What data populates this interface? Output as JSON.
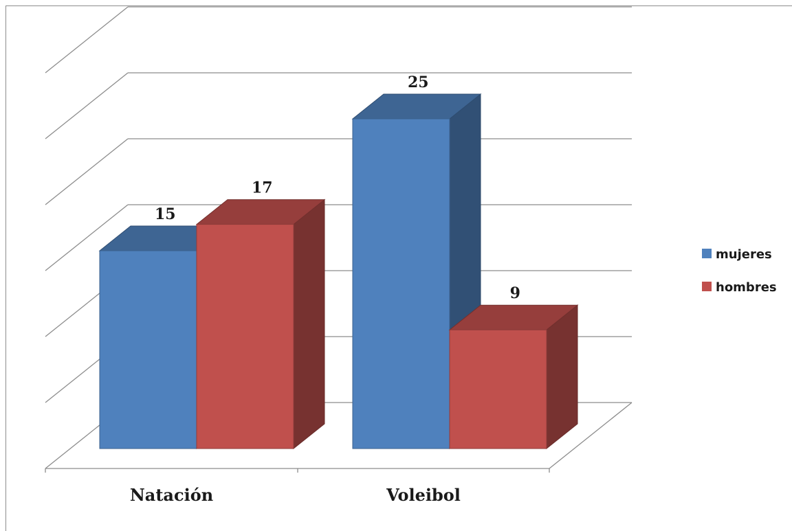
{
  "chart_data": {
    "type": "bar",
    "categories": [
      "Natación",
      "Voleibol"
    ],
    "series": [
      {
        "name": "mujeres",
        "values": [
          15,
          25
        ],
        "color": "#4f81bd"
      },
      {
        "name": "hombres",
        "values": [
          17,
          9
        ],
        "color": "#c0504d"
      }
    ],
    "title": "",
    "xlabel": "",
    "ylabel": "",
    "ylim": [
      0,
      30
    ],
    "grid": true,
    "legend": "right",
    "style": "3d-clustered-column"
  }
}
